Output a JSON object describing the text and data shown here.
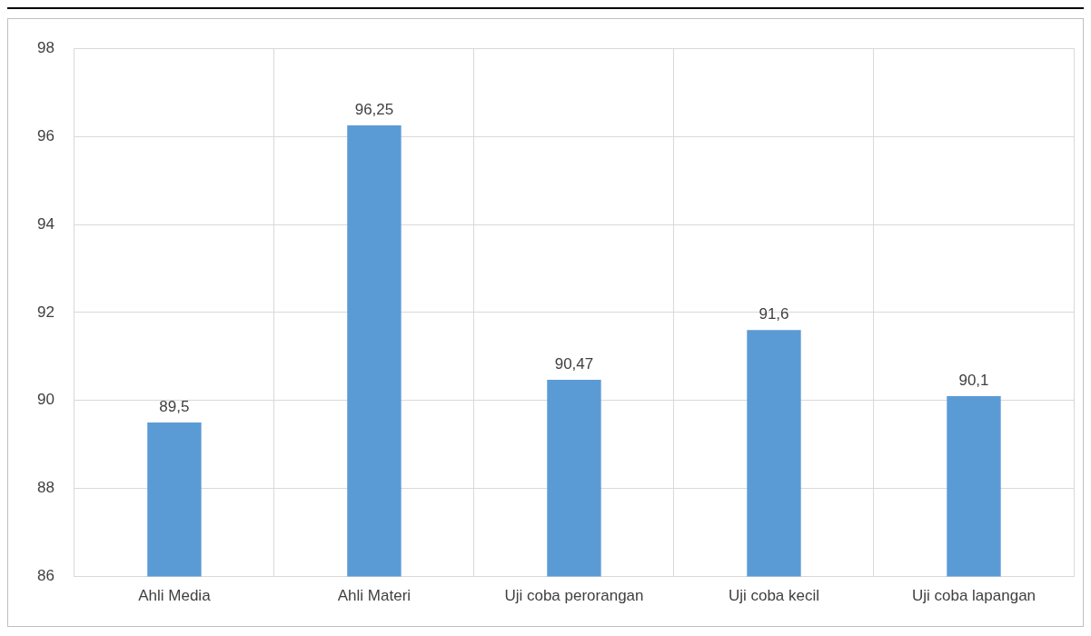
{
  "chart_data": {
    "type": "bar",
    "categories": [
      "Ahli Media",
      "Ahli Materi",
      "Uji coba perorangan",
      "Uji coba kecil",
      "Uji coba lapangan"
    ],
    "values": [
      89.5,
      96.25,
      90.47,
      91.6,
      90.1
    ],
    "color": "#5b9bd5",
    "value_labels": [
      "89,5",
      "96,25",
      "90,47",
      "91,6",
      "90,1"
    ],
    "ylim": [
      86,
      98
    ],
    "yticks": [
      86,
      88,
      90,
      92,
      94,
      96,
      98
    ],
    "grid": true,
    "legend": false
  }
}
